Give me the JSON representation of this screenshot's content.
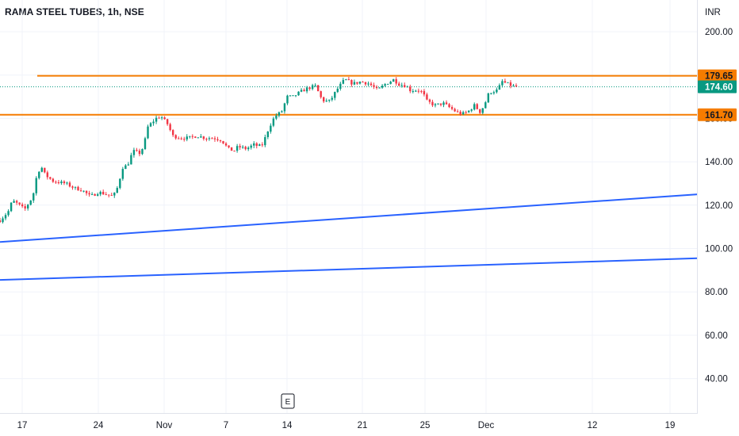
{
  "chart_data": {
    "type": "candlestick",
    "title": "RAMA STEEL TUBES, 1h, NSE",
    "currency": "INR",
    "y_ticks": [
      200,
      180,
      160,
      140,
      120,
      100,
      80,
      60,
      40
    ],
    "y_tick_labels": [
      "200.00",
      "180.00",
      "160.00",
      "140.00",
      "120.00",
      "100.00",
      "80.00",
      "60.00",
      "40.00"
    ],
    "ylim": [
      23,
      211
    ],
    "x_tick_labels": [
      "17",
      "24",
      "Nov",
      "7",
      "14",
      "21",
      "25",
      "Dec",
      "12",
      "19"
    ],
    "event_marker": "E",
    "horizontal_levels": [
      {
        "value": 179.65,
        "label": "179.65",
        "color": "#f57c00"
      },
      {
        "value": 161.7,
        "label": "161.70",
        "color": "#f57c00"
      }
    ],
    "last_price": {
      "value": 174.6,
      "label": "174.60",
      "color": "#089981"
    },
    "trend_lines": [
      {
        "from": {
          "x_tick": "start",
          "y": 103
        },
        "to": {
          "x_tick": "end",
          "y": 125
        },
        "color": "#2962ff"
      },
      {
        "from": {
          "x_tick": "start",
          "y": 85.5
        },
        "to": {
          "x_tick": "end",
          "y": 95.5
        },
        "color": "#2962ff"
      }
    ],
    "price_path": [
      {
        "x": 0,
        "y": 113
      },
      {
        "x": 1.0,
        "y": 117
      },
      {
        "x": 1.5,
        "y": 122
      },
      {
        "x": 2.0,
        "y": 121
      },
      {
        "x": 3.0,
        "y": 118
      },
      {
        "x": 4.0,
        "y": 124
      },
      {
        "x": 4.5,
        "y": 134
      },
      {
        "x": 5.0,
        "y": 138
      },
      {
        "x": 5.5,
        "y": 134
      },
      {
        "x": 6.5,
        "y": 131
      },
      {
        "x": 8.0,
        "y": 130
      },
      {
        "x": 9.0,
        "y": 128
      },
      {
        "x": 10.0,
        "y": 127
      },
      {
        "x": 11.0,
        "y": 124
      },
      {
        "x": 12.0,
        "y": 126
      },
      {
        "x": 13.0,
        "y": 125
      },
      {
        "x": 13.8,
        "y": 124
      },
      {
        "x": 14.3,
        "y": 128
      },
      {
        "x": 15.0,
        "y": 138
      },
      {
        "x": 15.5,
        "y": 138
      },
      {
        "x": 16.2,
        "y": 145
      },
      {
        "x": 17.0,
        "y": 144
      },
      {
        "x": 17.5,
        "y": 147
      },
      {
        "x": 18.0,
        "y": 156
      },
      {
        "x": 19.0,
        "y": 160
      },
      {
        "x": 19.6,
        "y": 161
      },
      {
        "x": 20.5,
        "y": 157
      },
      {
        "x": 21.0,
        "y": 152
      },
      {
        "x": 22.0,
        "y": 151
      },
      {
        "x": 23.0,
        "y": 151
      },
      {
        "x": 24.0,
        "y": 152
      },
      {
        "x": 25.0,
        "y": 151
      },
      {
        "x": 26.0,
        "y": 151
      },
      {
        "x": 27.0,
        "y": 150
      },
      {
        "x": 27.8,
        "y": 146
      },
      {
        "x": 28.5,
        "y": 145
      },
      {
        "x": 29.0,
        "y": 147
      },
      {
        "x": 30.0,
        "y": 146
      },
      {
        "x": 30.5,
        "y": 147
      },
      {
        "x": 31.0,
        "y": 148
      },
      {
        "x": 31.5,
        "y": 147
      },
      {
        "x": 32.0,
        "y": 148
      },
      {
        "x": 32.8,
        "y": 156
      },
      {
        "x": 33.5,
        "y": 161
      },
      {
        "x": 34.3,
        "y": 163
      },
      {
        "x": 35.0,
        "y": 170
      },
      {
        "x": 35.7,
        "y": 170
      },
      {
        "x": 36.5,
        "y": 172
      },
      {
        "x": 37.5,
        "y": 174
      },
      {
        "x": 38.5,
        "y": 175
      },
      {
        "x": 39.0,
        "y": 170
      },
      {
        "x": 39.5,
        "y": 168
      },
      {
        "x": 40.2,
        "y": 168
      },
      {
        "x": 41.0,
        "y": 173
      },
      {
        "x": 42.0,
        "y": 178
      },
      {
        "x": 42.5,
        "y": 177
      },
      {
        "x": 43.0,
        "y": 176
      },
      {
        "x": 44.0,
        "y": 177
      },
      {
        "x": 45.0,
        "y": 176
      },
      {
        "x": 46.0,
        "y": 173
      },
      {
        "x": 47.0,
        "y": 176
      },
      {
        "x": 48.0,
        "y": 178
      },
      {
        "x": 48.5,
        "y": 176
      },
      {
        "x": 49.5,
        "y": 175
      },
      {
        "x": 50.0,
        "y": 173
      },
      {
        "x": 51.0,
        "y": 173
      },
      {
        "x": 51.5,
        "y": 172
      },
      {
        "x": 52.0,
        "y": 168
      },
      {
        "x": 53.0,
        "y": 166
      },
      {
        "x": 54.0,
        "y": 167
      },
      {
        "x": 54.8,
        "y": 165
      },
      {
        "x": 55.6,
        "y": 163
      },
      {
        "x": 56.3,
        "y": 162
      },
      {
        "x": 57.0,
        "y": 163
      },
      {
        "x": 57.8,
        "y": 166
      },
      {
        "x": 58.5,
        "y": 163
      },
      {
        "x": 59.0,
        "y": 166
      },
      {
        "x": 59.6,
        "y": 172
      },
      {
        "x": 60.6,
        "y": 173
      },
      {
        "x": 61.2,
        "y": 177
      },
      {
        "x": 61.8,
        "y": 176
      },
      {
        "x": 62.4,
        "y": 175
      },
      {
        "x": 63.0,
        "y": 174.6
      }
    ]
  }
}
